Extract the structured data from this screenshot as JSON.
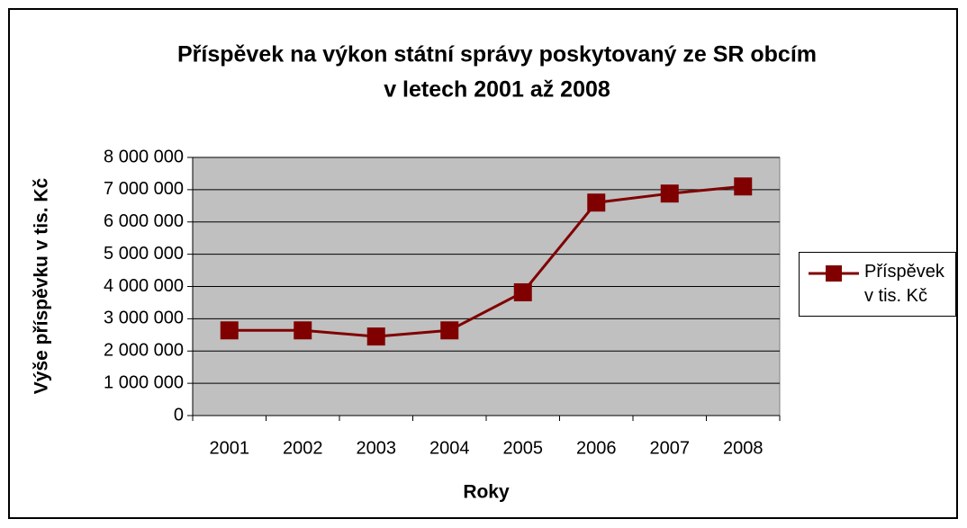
{
  "chart_data": {
    "type": "line",
    "title": [
      "Příspěvek na výkon státní správy poskytovaný ze SR obcím",
      "v letech 2001 až 2008"
    ],
    "x_label": "Roky",
    "y_label": "Výše příspěvku v tis. Kč",
    "categories": [
      "2001",
      "2002",
      "2003",
      "2004",
      "2005",
      "2006",
      "2007",
      "2008"
    ],
    "series": [
      {
        "name": "Příspěvek v tis. Kč",
        "color": "#800000",
        "values": [
          2640000,
          2640000,
          2450000,
          2640000,
          3820000,
          6600000,
          6880000,
          7100000
        ]
      }
    ],
    "ylim": [
      0,
      8000000
    ],
    "yticks": [
      0,
      {
        "value": 1000000,
        "label": "1 000 000"
      },
      {
        "value": 2000000,
        "label": "2 000 000"
      },
      {
        "value": 3000000,
        "label": "3 000 000"
      },
      {
        "value": 4000000,
        "label": "4 000 000"
      },
      {
        "value": 5000000,
        "label": "5 000 000"
      },
      {
        "value": 6000000,
        "label": "6 000 000"
      },
      {
        "value": 7000000,
        "label": "7 000 000"
      },
      {
        "value": 8000000,
        "label": "8 000 000"
      }
    ],
    "grid": true,
    "plot_background": "#c0c0c0",
    "legend": "right"
  }
}
